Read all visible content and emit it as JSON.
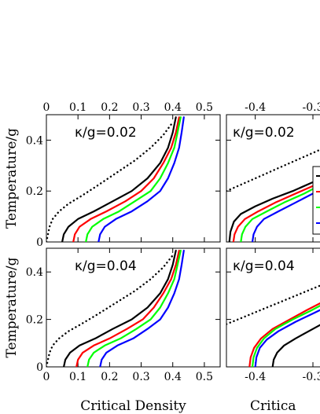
{
  "chart_data": [
    {
      "type": "line",
      "panel_label": "κ/g=0.02",
      "ylabel": "Temperature/g",
      "xlabel": "",
      "xlim": [
        0,
        0.55
      ],
      "ylim": [
        0,
        0.5
      ],
      "x_ticks": [
        "0",
        "0.1",
        "0.2",
        "0.3",
        "0.4",
        "0.5"
      ],
      "y_ticks": [
        "0",
        "0.2",
        "0.4"
      ],
      "x_tick_position": "top",
      "series": [
        {
          "color": "#000000",
          "style": "dotted",
          "x": [
            0.0,
            0.01,
            0.02,
            0.04,
            0.07,
            0.11,
            0.16,
            0.22,
            0.28,
            0.33,
            0.37,
            0.4
          ],
          "y": [
            0.0,
            0.06,
            0.09,
            0.12,
            0.15,
            0.18,
            0.22,
            0.27,
            0.32,
            0.37,
            0.42,
            0.47
          ]
        },
        {
          "color": "#000000",
          "style": "solid",
          "x": [
            0.05,
            0.055,
            0.07,
            0.1,
            0.15,
            0.21,
            0.27,
            0.32,
            0.36,
            0.385,
            0.4,
            0.41
          ],
          "y": [
            0.0,
            0.03,
            0.06,
            0.09,
            0.12,
            0.16,
            0.2,
            0.25,
            0.31,
            0.37,
            0.43,
            0.49
          ]
        },
        {
          "color": "#ff0000",
          "style": "solid",
          "x": [
            0.085,
            0.09,
            0.105,
            0.14,
            0.19,
            0.25,
            0.3,
            0.34,
            0.37,
            0.395,
            0.41,
            0.42
          ],
          "y": [
            0.0,
            0.03,
            0.06,
            0.09,
            0.12,
            0.16,
            0.2,
            0.25,
            0.31,
            0.37,
            0.43,
            0.49
          ]
        },
        {
          "color": "#00ff00",
          "style": "solid",
          "x": [
            0.125,
            0.13,
            0.145,
            0.18,
            0.23,
            0.28,
            0.33,
            0.36,
            0.385,
            0.405,
            0.415,
            0.425
          ],
          "y": [
            0.0,
            0.03,
            0.06,
            0.09,
            0.12,
            0.16,
            0.2,
            0.25,
            0.31,
            0.37,
            0.43,
            0.49
          ]
        },
        {
          "color": "#0000ff",
          "style": "solid",
          "x": [
            0.165,
            0.17,
            0.185,
            0.22,
            0.27,
            0.32,
            0.36,
            0.385,
            0.405,
            0.42,
            0.428,
            0.435
          ],
          "y": [
            0.0,
            0.03,
            0.06,
            0.09,
            0.12,
            0.16,
            0.2,
            0.25,
            0.31,
            0.37,
            0.43,
            0.49
          ]
        }
      ]
    },
    {
      "type": "line",
      "panel_label": "κ/g=0.04",
      "ylabel": "Temperature/g",
      "xlabel": "Critical Density",
      "xlim": [
        0,
        0.55
      ],
      "ylim": [
        0,
        0.5
      ],
      "x_ticks": [
        "0",
        "0.1",
        "0.2",
        "0.3",
        "0.4",
        "0.5"
      ],
      "y_ticks": [
        "0",
        "0.2",
        "0.4"
      ],
      "x_tick_position": "bottom",
      "series": [
        {
          "color": "#000000",
          "style": "dotted",
          "x": [
            0.0,
            0.01,
            0.02,
            0.04,
            0.07,
            0.11,
            0.16,
            0.22,
            0.28,
            0.33,
            0.37,
            0.4
          ],
          "y": [
            0.0,
            0.06,
            0.09,
            0.12,
            0.15,
            0.18,
            0.22,
            0.27,
            0.32,
            0.37,
            0.42,
            0.47
          ]
        },
        {
          "color": "#000000",
          "style": "solid",
          "x": [
            0.055,
            0.06,
            0.075,
            0.105,
            0.155,
            0.21,
            0.27,
            0.32,
            0.36,
            0.385,
            0.4,
            0.41
          ],
          "y": [
            0.0,
            0.03,
            0.06,
            0.09,
            0.12,
            0.16,
            0.2,
            0.25,
            0.31,
            0.37,
            0.43,
            0.49
          ]
        },
        {
          "color": "#ff0000",
          "style": "solid",
          "x": [
            0.095,
            0.1,
            0.115,
            0.15,
            0.2,
            0.255,
            0.305,
            0.34,
            0.37,
            0.395,
            0.41,
            0.42
          ],
          "y": [
            0.0,
            0.03,
            0.06,
            0.09,
            0.12,
            0.16,
            0.2,
            0.25,
            0.31,
            0.37,
            0.43,
            0.49
          ]
        },
        {
          "color": "#00ff00",
          "style": "solid",
          "x": [
            0.13,
            0.135,
            0.15,
            0.185,
            0.235,
            0.285,
            0.33,
            0.36,
            0.385,
            0.405,
            0.415,
            0.425
          ],
          "y": [
            0.0,
            0.03,
            0.06,
            0.09,
            0.12,
            0.16,
            0.2,
            0.25,
            0.31,
            0.37,
            0.43,
            0.49
          ]
        },
        {
          "color": "#0000ff",
          "style": "solid",
          "x": [
            0.17,
            0.175,
            0.19,
            0.225,
            0.275,
            0.32,
            0.36,
            0.385,
            0.405,
            0.42,
            0.428,
            0.435
          ],
          "y": [
            0.0,
            0.03,
            0.06,
            0.09,
            0.12,
            0.16,
            0.2,
            0.25,
            0.31,
            0.37,
            0.43,
            0.49
          ]
        }
      ]
    },
    {
      "type": "line",
      "panel_label": "κ/g=0.02",
      "ylabel": "",
      "xlabel": "",
      "xlim": [
        -0.45,
        -0.27
      ],
      "ylim": [
        0,
        0.5
      ],
      "x_ticks": [
        "-0.4",
        "-0.3"
      ],
      "y_ticks": [],
      "x_tick_position": "top",
      "legend": "right",
      "series": [
        {
          "color": "#000000",
          "style": "dotted",
          "x": [
            -0.45,
            -0.42,
            -0.39,
            -0.36,
            -0.33,
            -0.3,
            -0.27
          ],
          "y": [
            0.2,
            0.23,
            0.26,
            0.29,
            0.32,
            0.35,
            0.38
          ]
        },
        {
          "color": "#000000",
          "style": "solid",
          "x": [
            -0.445,
            -0.443,
            -0.437,
            -0.425,
            -0.4,
            -0.37,
            -0.335,
            -0.3,
            -0.27
          ],
          "y": [
            0.0,
            0.04,
            0.08,
            0.11,
            0.14,
            0.17,
            0.2,
            0.235,
            0.27
          ]
        },
        {
          "color": "#ff0000",
          "style": "solid",
          "x": [
            -0.438,
            -0.436,
            -0.43,
            -0.418,
            -0.395,
            -0.365,
            -0.33,
            -0.3,
            -0.27
          ],
          "y": [
            0.0,
            0.03,
            0.06,
            0.09,
            0.12,
            0.155,
            0.19,
            0.22,
            0.25
          ]
        },
        {
          "color": "#00ff00",
          "style": "solid",
          "x": [
            -0.425,
            -0.423,
            -0.417,
            -0.405,
            -0.38,
            -0.35,
            -0.315,
            -0.29,
            -0.27
          ],
          "y": [
            0.0,
            0.03,
            0.06,
            0.09,
            0.12,
            0.155,
            0.19,
            0.22,
            0.24
          ]
        },
        {
          "color": "#0000ff",
          "style": "solid",
          "x": [
            -0.405,
            -0.403,
            -0.397,
            -0.385,
            -0.36,
            -0.33,
            -0.3,
            -0.27
          ],
          "y": [
            0.0,
            0.03,
            0.06,
            0.09,
            0.12,
            0.155,
            0.19,
            0.22
          ]
        }
      ]
    },
    {
      "type": "line",
      "panel_label": "κ/g=0.04",
      "ylabel": "",
      "xlabel": "Critica",
      "xlim": [
        -0.45,
        -0.27
      ],
      "ylim": [
        0,
        0.5
      ],
      "x_ticks": [
        "-0.4",
        "-0.3"
      ],
      "y_ticks": [],
      "x_tick_position": "bottom",
      "series": [
        {
          "color": "#000000",
          "style": "dotted",
          "x": [
            -0.45,
            -0.42,
            -0.39,
            -0.36,
            -0.33,
            -0.3,
            -0.27
          ],
          "y": [
            0.18,
            0.21,
            0.24,
            0.27,
            0.3,
            0.33,
            0.36
          ]
        },
        {
          "color": "#000000",
          "style": "solid",
          "x": [
            -0.37,
            -0.368,
            -0.362,
            -0.35,
            -0.33,
            -0.3,
            -0.27
          ],
          "y": [
            0.0,
            0.03,
            0.06,
            0.09,
            0.12,
            0.16,
            0.2
          ]
        },
        {
          "color": "#ff0000",
          "style": "solid",
          "x": [
            -0.41,
            -0.408,
            -0.402,
            -0.39,
            -0.37,
            -0.34,
            -0.31,
            -0.27
          ],
          "y": [
            0.0,
            0.04,
            0.08,
            0.12,
            0.16,
            0.2,
            0.24,
            0.29
          ]
        },
        {
          "color": "#00ff00",
          "style": "solid",
          "x": [
            -0.405,
            -0.403,
            -0.397,
            -0.385,
            -0.365,
            -0.335,
            -0.305,
            -0.27
          ],
          "y": [
            0.0,
            0.04,
            0.08,
            0.12,
            0.16,
            0.2,
            0.235,
            0.28
          ]
        },
        {
          "color": "#0000ff",
          "style": "solid",
          "x": [
            -0.4,
            -0.398,
            -0.392,
            -0.38,
            -0.36,
            -0.33,
            -0.3,
            -0.27
          ],
          "y": [
            0.0,
            0.04,
            0.08,
            0.115,
            0.15,
            0.19,
            0.225,
            0.26
          ]
        }
      ]
    }
  ]
}
